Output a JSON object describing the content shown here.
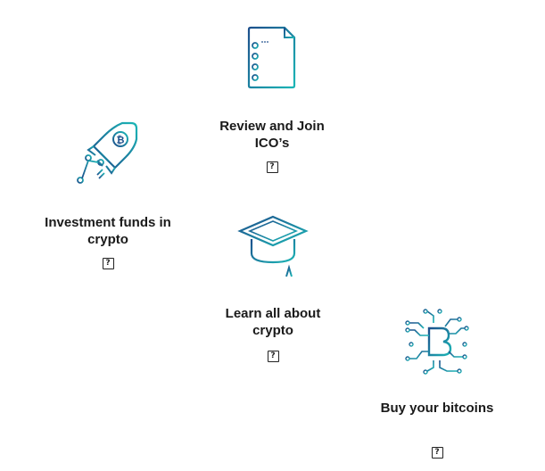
{
  "features": {
    "review": {
      "label": "Review and Join ICO’s",
      "help": "?",
      "icon": "checklist-document-icon"
    },
    "invest": {
      "label": "Investment funds in crypto",
      "help": "?",
      "icon": "rocket-bitcoin-icon"
    },
    "learn": {
      "label": "Learn all about crypto",
      "help": "?",
      "icon": "graduation-cap-icon"
    },
    "buy": {
      "label": "Buy your bitcoins",
      "help": "?",
      "icon": "bitcoin-circuit-icon"
    }
  },
  "colors": {
    "icon_dark": "#1d4f8c",
    "icon_light": "#1cb6b6",
    "text": "#1a1a1a"
  }
}
